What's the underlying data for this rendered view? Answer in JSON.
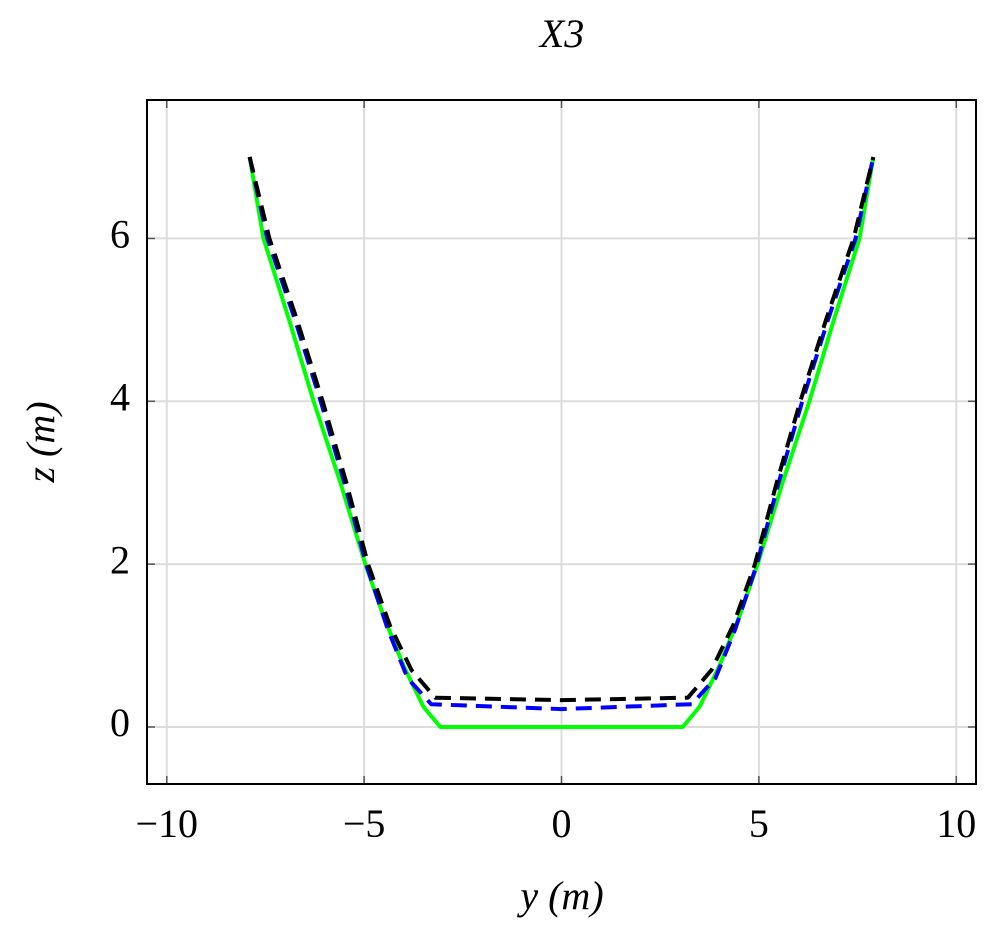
{
  "chart_data": {
    "type": "line",
    "title": "X3",
    "xlabel": "y (m)",
    "ylabel": "z (m)",
    "xlim": [
      -10.5,
      10.5
    ],
    "ylim": [
      -0.7,
      7.7
    ],
    "xticks": [
      {
        "value": -10,
        "label": "−10"
      },
      {
        "value": -5,
        "label": "−5"
      },
      0,
      5,
      10
    ],
    "yticks": [
      0,
      2,
      4,
      6
    ],
    "grid": true,
    "series": [
      {
        "color": "#00ff00",
        "dash": "solid",
        "x": [
          -7.9,
          -7.55,
          -6.9,
          -6.28,
          -5.6,
          -4.97,
          -4.5,
          -4.0,
          -3.5,
          -3.07,
          0,
          3.07,
          3.5,
          4.0,
          4.5,
          4.97,
          5.6,
          6.28,
          6.9,
          7.55,
          7.9
        ],
        "values": [
          7,
          6,
          5,
          4,
          3,
          2,
          1.35,
          0.75,
          0.25,
          0,
          0,
          0,
          0.25,
          0.75,
          1.35,
          2,
          3,
          4,
          5,
          6,
          7
        ]
      },
      {
        "color": "#0000ff",
        "dash": "dashed",
        "x": [
          -7.9,
          -7.45,
          -6.75,
          -6.1,
          -5.5,
          -4.95,
          -4.4,
          -3.9,
          -3.3,
          0,
          3.3,
          3.9,
          4.4,
          4.95,
          5.5,
          6.1,
          6.75,
          7.45,
          7.9
        ],
        "values": [
          7,
          6,
          5,
          4,
          3,
          2,
          1.2,
          0.6,
          0.28,
          0.22,
          0.28,
          0.6,
          1.2,
          2,
          3,
          4,
          5,
          6,
          7
        ]
      },
      {
        "color": "#000000",
        "dash": "dashed",
        "x": [
          -7.9,
          -7.4,
          -6.7,
          -6.05,
          -5.45,
          -4.9,
          -4.35,
          -3.8,
          -3.2,
          0,
          3.2,
          3.8,
          4.35,
          4.9,
          5.45,
          6.05,
          6.7,
          7.4,
          7.9
        ],
        "values": [
          7,
          6,
          5,
          4,
          3,
          2,
          1.25,
          0.7,
          0.36,
          0.33,
          0.36,
          0.7,
          1.25,
          2,
          3,
          4,
          5,
          6,
          7
        ]
      }
    ]
  }
}
